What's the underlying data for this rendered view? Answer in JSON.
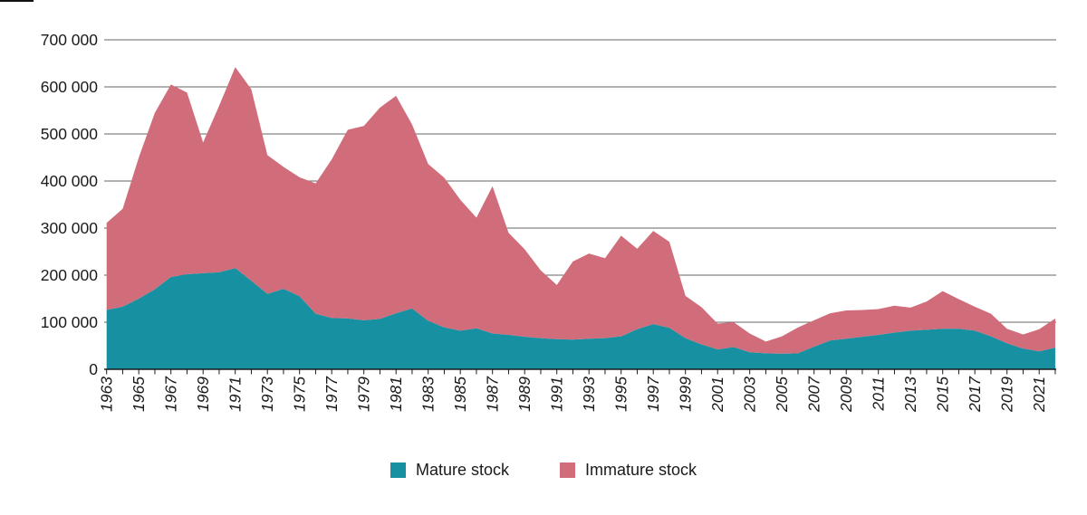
{
  "chart_data": {
    "type": "area",
    "stacked": true,
    "title": "",
    "xlabel": "",
    "ylabel": "",
    "x": [
      1963,
      1964,
      1965,
      1966,
      1967,
      1968,
      1969,
      1970,
      1971,
      1972,
      1973,
      1974,
      1975,
      1976,
      1977,
      1978,
      1979,
      1980,
      1981,
      1982,
      1983,
      1984,
      1985,
      1986,
      1987,
      1988,
      1989,
      1990,
      1991,
      1992,
      1993,
      1994,
      1995,
      1996,
      1997,
      1998,
      1999,
      2000,
      2001,
      2002,
      2003,
      2004,
      2005,
      2006,
      2007,
      2008,
      2009,
      2010,
      2011,
      2012,
      2013,
      2014,
      2015,
      2016,
      2017,
      2018,
      2019,
      2020,
      2021,
      2022
    ],
    "series": [
      {
        "name": "Mature stock",
        "color": "#1791a2",
        "values": [
          126000,
          133000,
          150000,
          170000,
          196000,
          202000,
          204000,
          206000,
          215000,
          188000,
          160000,
          171000,
          155000,
          118000,
          109000,
          108000,
          104000,
          107000,
          119000,
          129000,
          103000,
          89000,
          82000,
          87000,
          76000,
          73000,
          69000,
          66000,
          64000,
          63000,
          65000,
          66000,
          70000,
          85000,
          96000,
          88000,
          66000,
          53000,
          42000,
          47000,
          36000,
          34000,
          33000,
          34000,
          48000,
          61000,
          65000,
          69000,
          73000,
          78000,
          82000,
          84000,
          86000,
          86000,
          82000,
          70000,
          55000,
          44000,
          38000,
          46000
        ]
      },
      {
        "name": "Immature stock",
        "color": "#d16d7b",
        "values": [
          185000,
          208000,
          300000,
          375000,
          409000,
          386000,
          278000,
          354000,
          427000,
          407000,
          295000,
          259000,
          253000,
          277000,
          337000,
          401000,
          413000,
          449000,
          462000,
          391000,
          333000,
          318000,
          278000,
          235000,
          313000,
          217000,
          186000,
          144000,
          115000,
          166000,
          181000,
          170000,
          214000,
          171000,
          198000,
          183000,
          90000,
          79000,
          55000,
          53000,
          40000,
          25000,
          37000,
          55000,
          56000,
          58000,
          60000,
          57000,
          55000,
          57000,
          49000,
          60000,
          80000,
          63000,
          51000,
          48000,
          31000,
          30000,
          47000,
          62000
        ]
      }
    ],
    "ylim": [
      0,
      700000
    ],
    "y_ticks": [
      0,
      100000,
      200000,
      300000,
      400000,
      500000,
      600000,
      700000
    ],
    "y_tick_labels": [
      "0",
      "100 000",
      "200 000",
      "300 000",
      "400 000",
      "500 000",
      "600 000",
      "700 000"
    ],
    "x_tick_labels": [
      "1963",
      "1965",
      "1967",
      "1969",
      "1971",
      "1973",
      "1975",
      "1977",
      "1979",
      "1981",
      "1983",
      "1985",
      "1987",
      "1989",
      "1991",
      "1993",
      "1995",
      "1997",
      "1999",
      "2001",
      "2003",
      "2005",
      "2007",
      "2009",
      "2011",
      "2013",
      "2015",
      "2017",
      "2019",
      "2021"
    ],
    "grid": true,
    "legend_position": "bottom",
    "colors": {
      "grid": "#666666",
      "axis": "#1a1a1a",
      "text": "#1a1a1a",
      "background": "#ffffff"
    }
  }
}
